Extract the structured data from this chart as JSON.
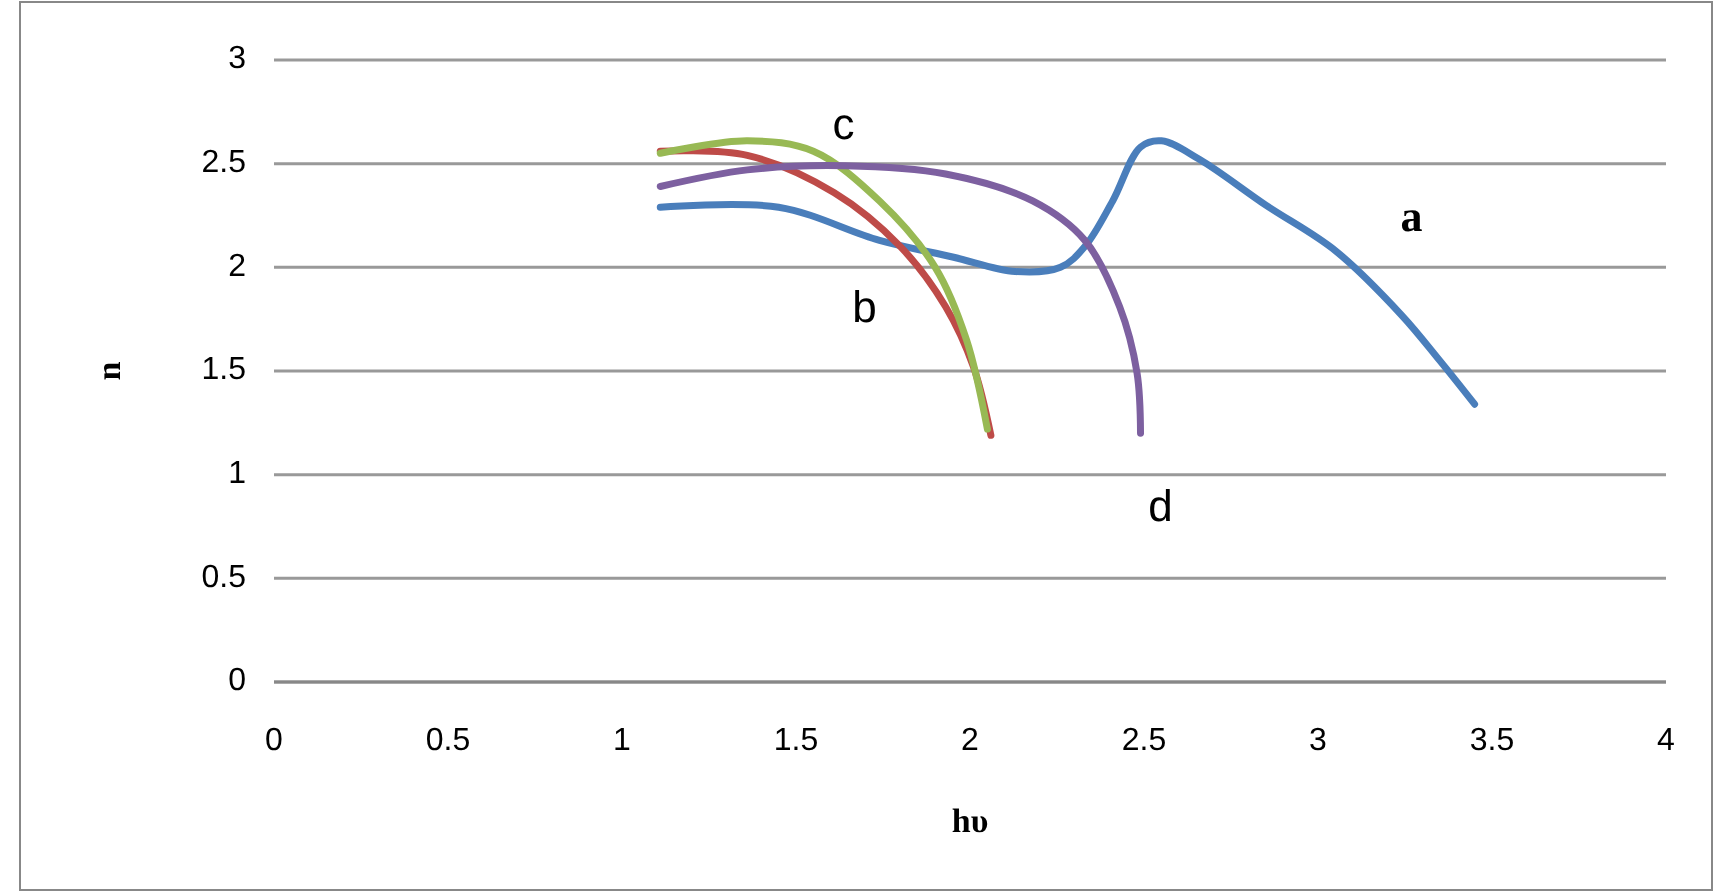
{
  "chart_data": {
    "type": "line",
    "xlabel": "hυ",
    "ylabel": "n",
    "xlim": [
      0,
      4
    ],
    "xticks": [
      0,
      0.5,
      1,
      1.5,
      2,
      2.5,
      3,
      3.5,
      4
    ],
    "ylim": [
      0,
      3
    ],
    "yticks": [
      0,
      0.5,
      1,
      1.5,
      2,
      2.5,
      3
    ],
    "grid": "y",
    "marker": "none",
    "line_style": "solid",
    "series": [
      {
        "name": "a",
        "color": "#4a7ebb",
        "x": [
          1.11,
          1.45,
          1.74,
          1.95,
          2.13,
          2.26,
          2.33,
          2.41,
          2.49,
          2.55,
          2.66,
          2.85,
          3.05,
          3.24,
          3.35,
          3.45
        ],
        "values": [
          2.29,
          2.29,
          2.13,
          2.05,
          1.98,
          2.0,
          2.1,
          2.32,
          2.58,
          2.61,
          2.52,
          2.3,
          2.08,
          1.77,
          1.55,
          1.34
        ]
      },
      {
        "name": "b",
        "color": "#be4b48",
        "x": [
          1.11,
          1.36,
          1.61,
          1.8,
          1.93,
          2.01,
          2.06
        ],
        "values": [
          2.56,
          2.54,
          2.36,
          2.1,
          1.81,
          1.52,
          1.19
        ]
      },
      {
        "name": "c",
        "color": "#98b954",
        "x": [
          1.11,
          1.36,
          1.55,
          1.74,
          1.9,
          1.99,
          2.05
        ],
        "values": [
          2.55,
          2.61,
          2.56,
          2.32,
          2.0,
          1.65,
          1.22
        ]
      },
      {
        "name": "d",
        "color": "#7d60a0",
        "x": [
          1.11,
          1.36,
          1.64,
          1.93,
          2.18,
          2.33,
          2.43,
          2.48,
          2.49
        ],
        "values": [
          2.39,
          2.47,
          2.49,
          2.45,
          2.32,
          2.13,
          1.81,
          1.49,
          1.2
        ]
      }
    ]
  }
}
